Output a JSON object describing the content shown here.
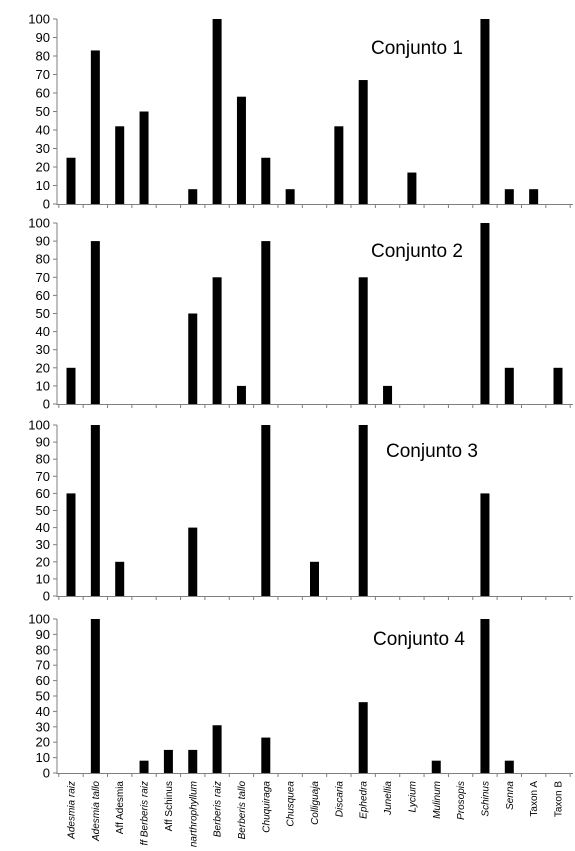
{
  "chart_data": [
    {
      "type": "bar",
      "title": "Conjunto 1",
      "ylim": [
        0,
        100
      ],
      "yticks": [
        0,
        10,
        20,
        30,
        40,
        50,
        60,
        70,
        80,
        90,
        100
      ],
      "grid": false,
      "categories": [
        "Adesmia raiz",
        "Adesmia tallo",
        "Aff Adesmia",
        "Aff Berberis raiz",
        "Aff Schinus",
        "Anarthrophyllum",
        "Berberis raiz",
        "Berberis tallo",
        "Chuquiraga",
        "Chusquea",
        "Colliguaja",
        "Discaria",
        "Ephedra",
        "Junellia",
        "Lycium",
        "Mulinum",
        "Prosopis",
        "Schinus",
        "Senna",
        "Taxon A",
        "Taxon B"
      ],
      "values": [
        25,
        83,
        42,
        50,
        0,
        8,
        100,
        58,
        25,
        8,
        0,
        42,
        67,
        0,
        17,
        0,
        0,
        100,
        8,
        8,
        0
      ]
    },
    {
      "type": "bar",
      "title": "Conjunto 2",
      "ylim": [
        0,
        100
      ],
      "yticks": [
        0,
        10,
        20,
        30,
        40,
        50,
        60,
        70,
        80,
        90,
        100
      ],
      "grid": false,
      "categories": [
        "Adesmia raiz",
        "Adesmia tallo",
        "Aff Adesmia",
        "Aff Berberis raiz",
        "Aff Schinus",
        "Anarthrophyllum",
        "Berberis raiz",
        "Berberis tallo",
        "Chuquiraga",
        "Chusquea",
        "Colliguaja",
        "Discaria",
        "Ephedra",
        "Junellia",
        "Lycium",
        "Mulinum",
        "Prosopis",
        "Schinus",
        "Senna",
        "Taxon A",
        "Taxon B"
      ],
      "values": [
        20,
        90,
        0,
        0,
        0,
        50,
        70,
        10,
        90,
        0,
        0,
        0,
        70,
        10,
        0,
        0,
        0,
        100,
        20,
        0,
        20
      ]
    },
    {
      "type": "bar",
      "title": "Conjunto 3",
      "ylim": [
        0,
        100
      ],
      "yticks": [
        0,
        10,
        20,
        30,
        40,
        50,
        60,
        70,
        80,
        90,
        100
      ],
      "grid": false,
      "categories": [
        "Adesmia raiz",
        "Adesmia tallo",
        "Aff Adesmia",
        "Aff Berberis raiz",
        "Aff Schinus",
        "Anarthrophyllum",
        "Berberis raiz",
        "Berberis tallo",
        "Chuquiraga",
        "Chusquea",
        "Colliguaja",
        "Discaria",
        "Ephedra",
        "Junellia",
        "Lycium",
        "Mulinum",
        "Prosopis",
        "Schinus",
        "Senna",
        "Taxon A",
        "Taxon B"
      ],
      "values": [
        60,
        100,
        20,
        0,
        0,
        40,
        0,
        0,
        100,
        0,
        20,
        0,
        100,
        0,
        0,
        0,
        0,
        60,
        0,
        0,
        0
      ]
    },
    {
      "type": "bar",
      "title": "Conjunto 4",
      "ylim": [
        0,
        100
      ],
      "yticks": [
        0,
        10,
        20,
        30,
        40,
        50,
        60,
        70,
        80,
        90,
        100
      ],
      "grid": false,
      "categories": [
        "Adesmia raiz",
        "Adesmia tallo",
        "Aff Adesmia",
        "Aff Berberis raiz",
        "Aff Schinus",
        "Anarthrophyllum",
        "Berberis raiz",
        "Berberis tallo",
        "Chuquiraga",
        "Chusquea",
        "Colliguaja",
        "Discaria",
        "Ephedra",
        "Junellia",
        "Lycium",
        "Mulinum",
        "Prosopis",
        "Schinus",
        "Senna",
        "Taxon A",
        "Taxon B"
      ],
      "values": [
        0,
        100,
        0,
        8,
        15,
        15,
        31,
        0,
        23,
        0,
        0,
        0,
        46,
        0,
        0,
        8,
        0,
        100,
        8,
        0,
        0
      ],
      "category_labels": [
        "Adesmia raiz",
        "Adesmia tallo",
        "Aff Adesmia",
        "ff Berberis raiz",
        "Aff Schinus",
        "narthrophyllum",
        "Berberis raiz",
        "Berberis tallo",
        "Chuquiraga",
        "Chusquea",
        "Colliguaja",
        "Discaria",
        "Ephedra",
        "Junellia",
        "Lycium",
        "Mulinum",
        "Prosopis",
        "Schinus",
        "Senna",
        "Taxon A",
        "Taxon B"
      ],
      "category_label_italic": [
        true,
        true,
        false,
        true,
        false,
        true,
        true,
        true,
        true,
        true,
        true,
        true,
        true,
        true,
        true,
        true,
        true,
        true,
        true,
        false,
        false
      ]
    }
  ],
  "colors": {
    "bar": "#000000",
    "axis": "#7f7f7f",
    "text": "#000000"
  }
}
